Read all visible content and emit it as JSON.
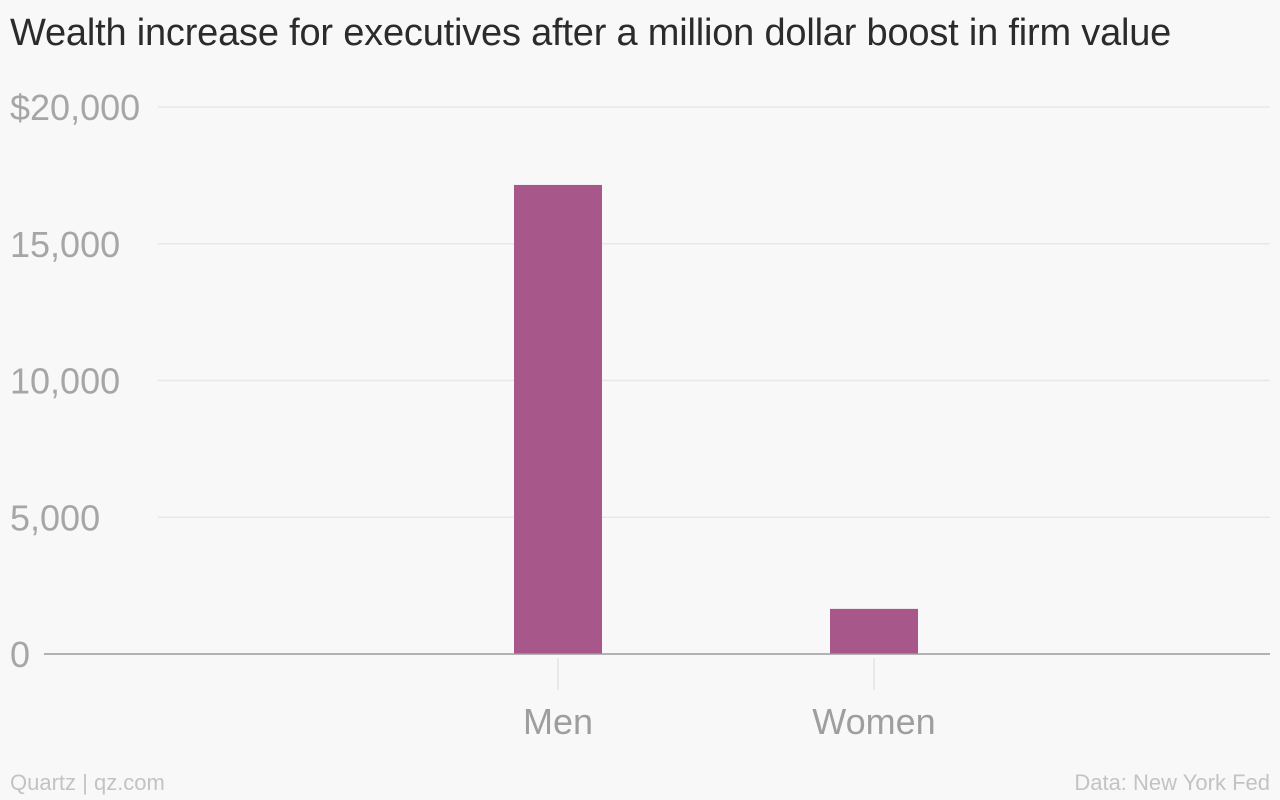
{
  "chart_data": {
    "type": "bar",
    "title": "Wealth increase for executives after a million dollar boost in firm value",
    "categories": [
      "Men",
      "Women"
    ],
    "values": [
      17150,
      1650
    ],
    "ylim": [
      0,
      20000
    ],
    "yticks": [
      0,
      5000,
      10000,
      15000,
      20000
    ],
    "ytick_labels": [
      "0",
      "5,000",
      "10,000",
      "15,000",
      "$20,000"
    ],
    "xlabel": "",
    "ylabel": "",
    "grid": true,
    "bar_color": "#a8578a"
  },
  "footer": {
    "source_left": "Quartz | qz.com",
    "source_right": "Data: New York Fed"
  }
}
